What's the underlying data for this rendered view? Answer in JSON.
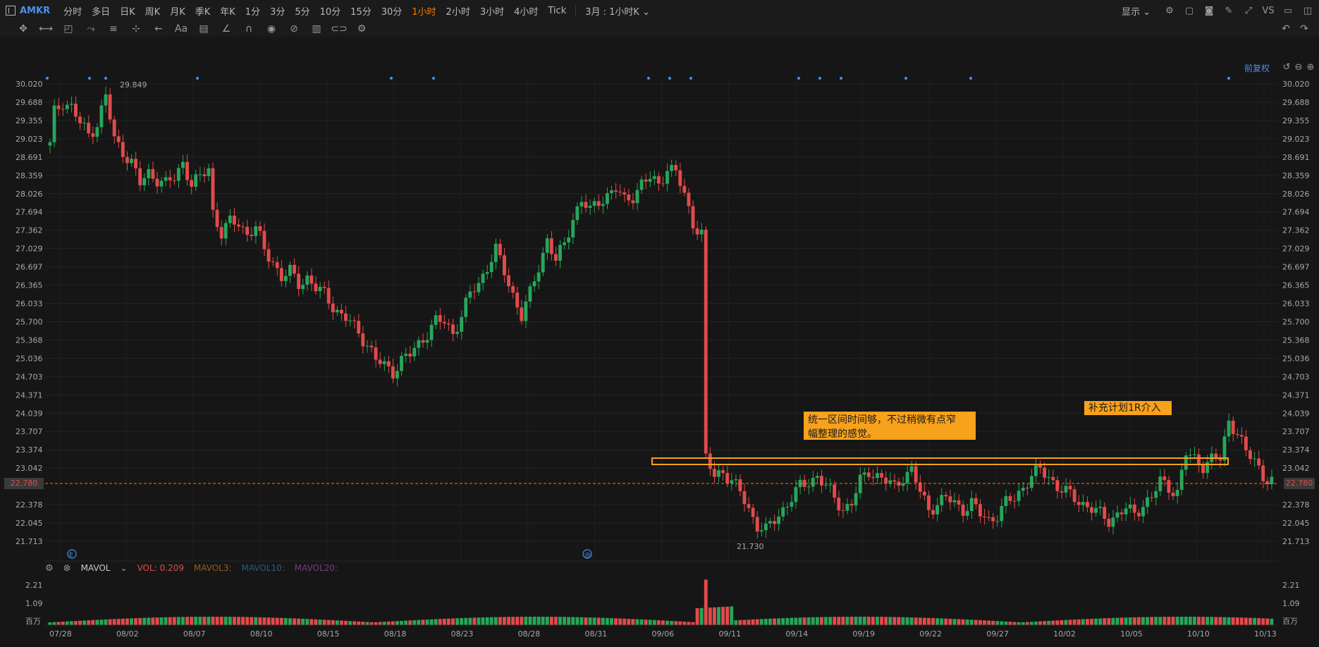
{
  "toolbar": {
    "symbol": "AMKR",
    "timeframes": [
      "分时",
      "多日",
      "日K",
      "周K",
      "月K",
      "季K",
      "年K",
      "1分",
      "3分",
      "5分",
      "10分",
      "15分",
      "30分",
      "1小时",
      "2小时",
      "3小时",
      "4小时",
      "Tick"
    ],
    "active_timeframe": "1小时",
    "range_select": "3月 : 1小时K",
    "display_label": "显示",
    "vs_label": "VS"
  },
  "chart": {
    "adjust_label": "前复权",
    "current_price": "22.780",
    "high_label": "29.849",
    "low_label": "21.730",
    "note_1": "统一区间时间够，不过稍微有点窄\n幅整理的感觉。",
    "note_2": "补充计划1R介入",
    "earnings_marker": "E",
    "dividend_marker": "@"
  },
  "indicator": {
    "name": "MAVOL",
    "vol": "VOL: 0.209",
    "mavol3": "MAVOL3:",
    "mavol10": "MAVOL10:",
    "mavol20": "MAVOL20:",
    "unit": "百万"
  },
  "colors": {
    "up": "#26a65b",
    "down": "#e24a4a",
    "accent": "#ff7a00",
    "note": "#f8a11a",
    "blue": "#4c8fe6"
  },
  "chart_data": {
    "type": "candlestick",
    "y_ticks": [
      "30.020",
      "29.688",
      "29.355",
      "29.023",
      "28.691",
      "28.359",
      "28.026",
      "27.694",
      "27.362",
      "27.029",
      "26.697",
      "26.365",
      "26.033",
      "25.700",
      "25.368",
      "25.036",
      "24.703",
      "24.371",
      "24.039",
      "23.707",
      "23.374",
      "23.042",
      "22.378",
      "22.045",
      "21.713"
    ],
    "vol_ticks": [
      "2.21",
      "1.09",
      "百万"
    ],
    "x_labels": [
      "07/28",
      "08/02",
      "08/07",
      "08/10",
      "08/15",
      "08/18",
      "08/23",
      "08/28",
      "08/31",
      "09/06",
      "09/11",
      "09/14",
      "09/19",
      "09/22",
      "09/27",
      "10/02",
      "10/05",
      "10/10",
      "10/13"
    ],
    "close_path": [
      [
        0,
        28.9
      ],
      [
        1,
        29.5
      ],
      [
        3,
        29.7
      ],
      [
        5,
        29.6
      ],
      [
        7,
        29.3
      ],
      [
        9,
        29.1
      ],
      [
        11,
        29.3
      ],
      [
        13,
        29.8
      ],
      [
        15,
        29.0
      ],
      [
        17,
        28.8
      ],
      [
        19,
        28.6
      ],
      [
        21,
        28.2
      ],
      [
        23,
        28.4
      ],
      [
        25,
        28.3
      ],
      [
        27,
        28.2
      ],
      [
        29,
        28.3
      ],
      [
        31,
        28.6
      ],
      [
        33,
        28.2
      ],
      [
        35,
        28.3
      ],
      [
        37,
        28.5
      ],
      [
        38,
        27.7
      ],
      [
        40,
        27.3
      ],
      [
        42,
        27.5
      ],
      [
        44,
        27.5
      ],
      [
        46,
        27.3
      ],
      [
        48,
        27.4
      ],
      [
        50,
        27.0
      ],
      [
        52,
        26.8
      ],
      [
        54,
        26.5
      ],
      [
        56,
        26.6
      ],
      [
        58,
        26.4
      ],
      [
        60,
        26.5
      ],
      [
        62,
        26.3
      ],
      [
        64,
        26.2
      ],
      [
        66,
        26.0
      ],
      [
        68,
        25.8
      ],
      [
        70,
        25.7
      ],
      [
        72,
        25.5
      ],
      [
        74,
        25.3
      ],
      [
        76,
        25.0
      ],
      [
        78,
        24.9
      ],
      [
        80,
        24.8
      ],
      [
        82,
        25.0
      ],
      [
        84,
        25.1
      ],
      [
        86,
        25.3
      ],
      [
        88,
        25.5
      ],
      [
        90,
        25.7
      ],
      [
        92,
        25.7
      ],
      [
        94,
        25.5
      ],
      [
        96,
        25.8
      ],
      [
        98,
        26.2
      ],
      [
        100,
        26.4
      ],
      [
        102,
        26.7
      ],
      [
        104,
        27.0
      ],
      [
        106,
        26.6
      ],
      [
        108,
        26.2
      ],
      [
        110,
        25.8
      ],
      [
        112,
        26.2
      ],
      [
        114,
        26.7
      ],
      [
        116,
        27.2
      ],
      [
        118,
        26.8
      ],
      [
        120,
        27.1
      ],
      [
        122,
        27.6
      ],
      [
        124,
        27.9
      ],
      [
        126,
        27.7
      ],
      [
        128,
        27.9
      ],
      [
        130,
        28.0
      ],
      [
        132,
        28.1
      ],
      [
        134,
        27.9
      ],
      [
        136,
        28.0
      ],
      [
        138,
        28.2
      ],
      [
        140,
        28.3
      ],
      [
        142,
        28.2
      ],
      [
        144,
        28.5
      ],
      [
        146,
        28.4
      ],
      [
        148,
        28.0
      ],
      [
        150,
        27.5
      ],
      [
        152,
        27.3
      ],
      [
        153,
        23.2
      ],
      [
        155,
        22.9
      ],
      [
        157,
        23.0
      ],
      [
        159,
        22.8
      ],
      [
        161,
        22.6
      ],
      [
        163,
        22.3
      ],
      [
        165,
        22.0
      ],
      [
        167,
        21.9
      ],
      [
        169,
        22.1
      ],
      [
        171,
        22.3
      ],
      [
        173,
        22.5
      ],
      [
        175,
        22.7
      ],
      [
        177,
        22.8
      ],
      [
        179,
        22.9
      ],
      [
        181,
        22.7
      ],
      [
        183,
        22.5
      ],
      [
        185,
        22.3
      ],
      [
        187,
        22.4
      ],
      [
        189,
        22.8
      ],
      [
        191,
        23.0
      ],
      [
        193,
        22.9
      ],
      [
        195,
        22.8
      ],
      [
        197,
        22.7
      ],
      [
        199,
        22.9
      ],
      [
        201,
        23.0
      ],
      [
        203,
        22.6
      ],
      [
        205,
        22.3
      ],
      [
        207,
        22.4
      ],
      [
        209,
        22.5
      ],
      [
        211,
        22.4
      ],
      [
        213,
        22.3
      ],
      [
        215,
        22.4
      ],
      [
        217,
        22.2
      ],
      [
        219,
        22.1
      ],
      [
        221,
        22.2
      ],
      [
        223,
        22.4
      ],
      [
        225,
        22.5
      ],
      [
        227,
        22.7
      ],
      [
        229,
        22.9
      ],
      [
        231,
        23.0
      ],
      [
        233,
        22.9
      ],
      [
        235,
        22.7
      ],
      [
        237,
        22.6
      ],
      [
        239,
        22.5
      ],
      [
        241,
        22.4
      ],
      [
        243,
        22.3
      ],
      [
        245,
        22.2
      ],
      [
        247,
        22.1
      ],
      [
        249,
        22.2
      ],
      [
        251,
        22.3
      ],
      [
        253,
        22.2
      ],
      [
        255,
        22.4
      ],
      [
        257,
        22.5
      ],
      [
        259,
        22.8
      ],
      [
        261,
        22.7
      ],
      [
        263,
        22.6
      ],
      [
        265,
        23.3
      ],
      [
        267,
        23.2
      ],
      [
        269,
        23.1
      ],
      [
        271,
        23.2
      ],
      [
        273,
        23.2
      ],
      [
        275,
        23.9
      ],
      [
        277,
        23.7
      ],
      [
        279,
        23.3
      ],
      [
        281,
        23.2
      ],
      [
        283,
        22.9
      ],
      [
        285,
        22.8
      ]
    ]
  }
}
